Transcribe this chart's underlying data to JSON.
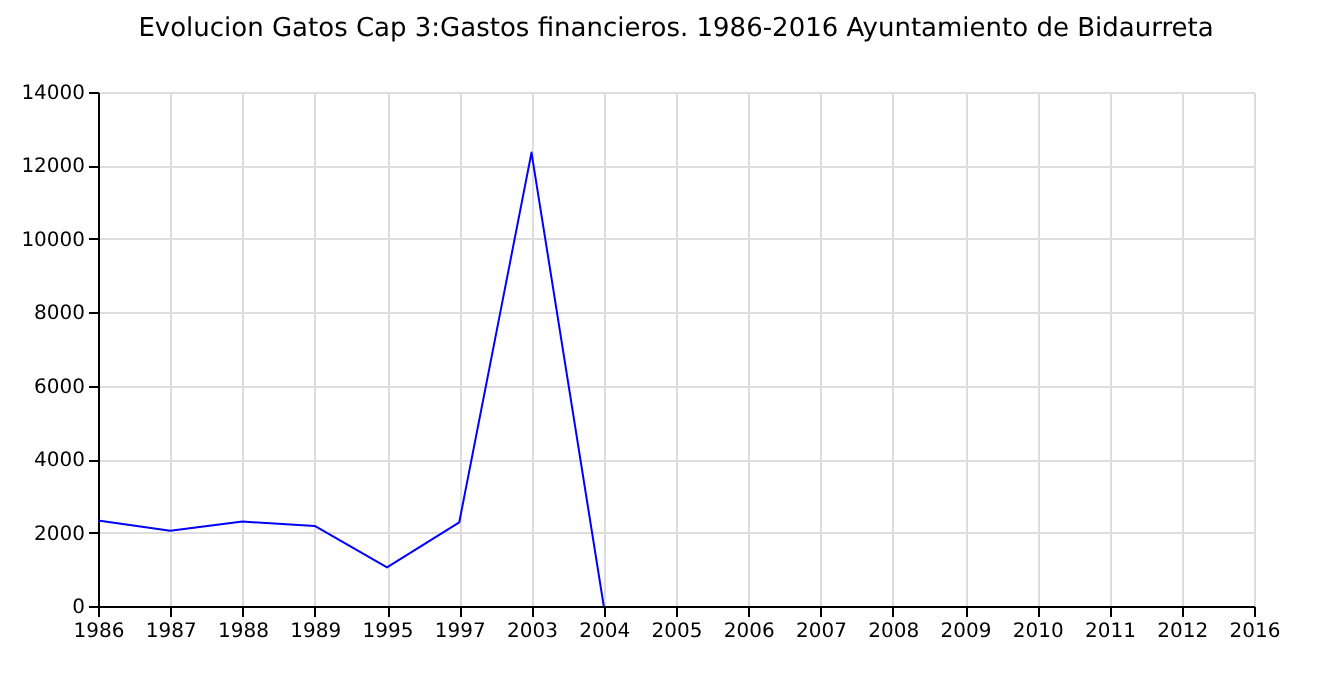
{
  "chart_data": {
    "type": "line",
    "title": "Evolucion Gatos Cap 3:Gastos financieros. 1986-2016 Ayuntamiento de Bidaurreta",
    "categories": [
      "1986",
      "1987",
      "1988",
      "1989",
      "1995",
      "1997",
      "2003",
      "2004",
      "2005",
      "2006",
      "2007",
      "2008",
      "2009",
      "2010",
      "2011",
      "2012",
      "2016"
    ],
    "series": [
      {
        "color": "#0000ff",
        "values": [
          2330,
          2050,
          2300,
          2180,
          1050,
          2280,
          12350,
          0,
          null,
          null,
          null,
          null,
          null,
          null,
          null,
          null,
          null
        ]
      }
    ],
    "ylim": [
      0,
      14000
    ],
    "yticks": [
      0,
      2000,
      4000,
      6000,
      8000,
      10000,
      12000,
      14000
    ],
    "grid": true,
    "marker": "none",
    "line_style": "solid"
  }
}
